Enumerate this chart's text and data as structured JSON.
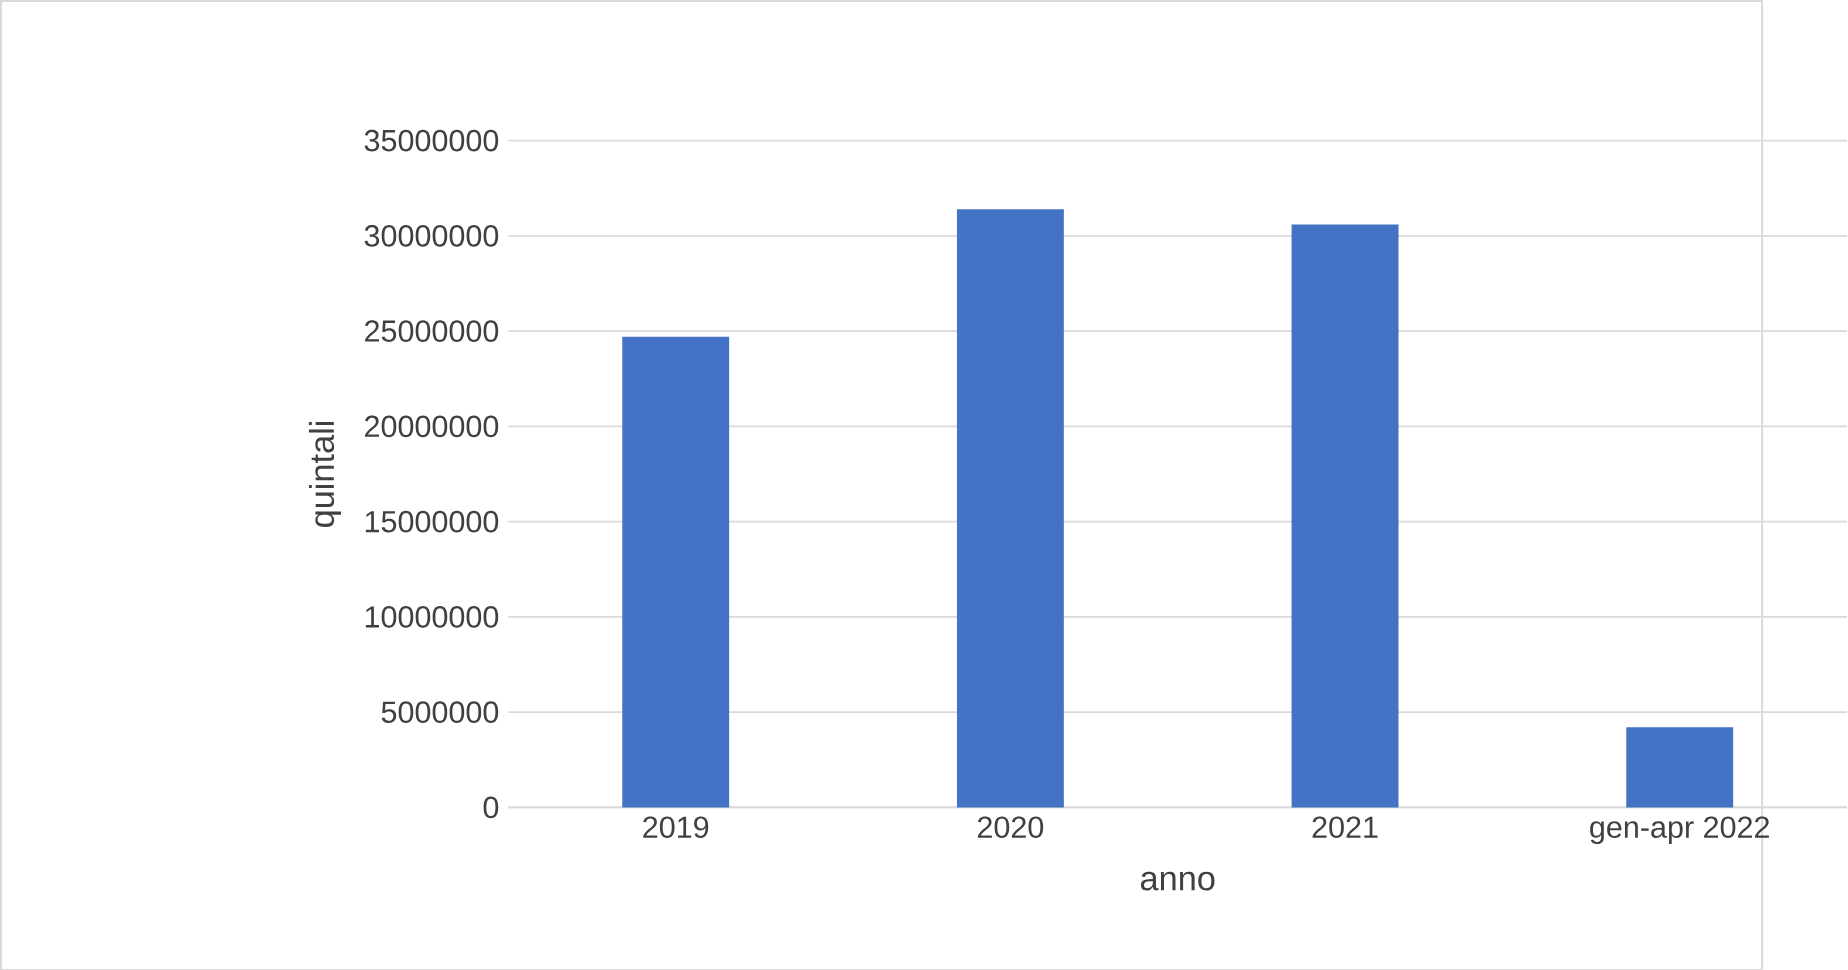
{
  "chart_data": {
    "type": "bar",
    "xlabel": "anno",
    "ylabel": "quintali",
    "categories": [
      "2019",
      "2020",
      "2021",
      "gen-apr 2022"
    ],
    "values": [
      24700000,
      31400000,
      30600000,
      4200000
    ],
    "color": "#4472c4",
    "ylim": [
      0,
      35000000
    ],
    "yticks": [
      0,
      5000000,
      10000000,
      15000000,
      20000000,
      25000000,
      30000000,
      35000000
    ],
    "grid": "y"
  }
}
